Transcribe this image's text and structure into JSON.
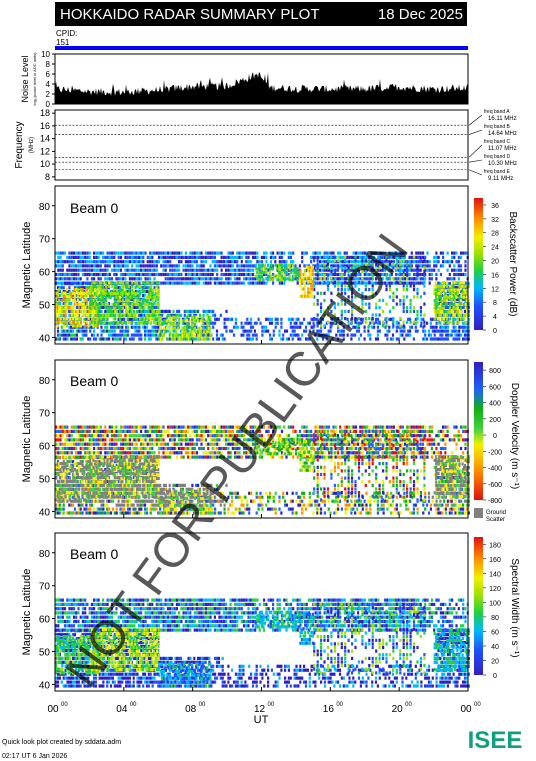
{
  "header": {
    "title": "HOKKAIDO RADAR SUMMARY PLOT",
    "date": "18 Dec 2025",
    "cpid_label": "CPID:",
    "cpid_value": "151",
    "bg_color": "#000000",
    "bar_color": "#0000ff"
  },
  "noise_panel": {
    "ylabel": "Noise Level",
    "sublabel": "log₁₀(noise level in ADC units)",
    "yticks": [
      "0",
      "2",
      "4",
      "6",
      "8",
      "10"
    ],
    "ylim": [
      0,
      10
    ]
  },
  "freq_panel": {
    "ylabel": "Frequency",
    "unit": "(MHz)",
    "yticks": [
      "8",
      "10",
      "12",
      "14",
      "16",
      "18"
    ],
    "ylim": [
      7.5,
      18.5
    ],
    "bands": [
      {
        "name": "freq band A",
        "value": "16.11 MHz",
        "mhz": 16.11
      },
      {
        "name": "freq band B",
        "value": "14.64 MHz",
        "mhz": 14.64
      },
      {
        "name": "freq band C",
        "value": "11.07 MHz",
        "mhz": 11.07
      },
      {
        "name": "freq band D",
        "value": "10.30 MHz",
        "mhz": 10.3
      },
      {
        "name": "freq band E",
        "value": "9.11 MHz",
        "mhz": 9.11
      }
    ]
  },
  "panels": [
    {
      "beam_label": "Beam  0",
      "ylabel": "Magnetic Latitude",
      "yticks": [
        "40",
        "50",
        "60",
        "70",
        "80"
      ],
      "colorbar_label": "Backscatter Power (dB)",
      "colorbar_ticks": [
        "0",
        "4",
        "8",
        "12",
        "16",
        "20",
        "24",
        "28",
        "32",
        "36"
      ]
    },
    {
      "beam_label": "Beam  0",
      "ylabel": "Magnetic Latitude",
      "yticks": [
        "40",
        "50",
        "60",
        "70",
        "80"
      ],
      "colorbar_label": "Doppler Velocity (m s⁻¹)",
      "colorbar_ticks": [
        "-800",
        "-600",
        "-400",
        "-200",
        "0",
        "200",
        "400",
        "600",
        "800"
      ],
      "ground_scatter_label": [
        "Ground",
        "Scatter"
      ]
    },
    {
      "beam_label": "Beam  0",
      "ylabel": "Magnetic Latitude",
      "yticks": [
        "40",
        "50",
        "60",
        "70",
        "80"
      ],
      "colorbar_label": "Spectral Width (m s⁻¹)",
      "colorbar_ticks": [
        "0",
        "20",
        "40",
        "60",
        "80",
        "100",
        "120",
        "140",
        "160",
        "180"
      ]
    }
  ],
  "xaxis": {
    "label": "UT",
    "ticks": [
      "00",
      "04",
      "08",
      "12",
      "16",
      "20",
      "00"
    ],
    "superscript": "00"
  },
  "watermark": "NOT FOR PUBLICATION",
  "footer": {
    "line1": "Quick look plot created by sddata.adm",
    "line2": "02:17 UT  6 Jan 2026",
    "logo_text": "ISEE"
  },
  "chart_data": {
    "type": "heatmap",
    "title": "HOKKAIDO RADAR SUMMARY PLOT",
    "date": "18 Dec 2025",
    "x_unit": "UT hours",
    "xlim": [
      0,
      24
    ],
    "noise_level": {
      "x": [
        0,
        2,
        4,
        6,
        8,
        10,
        11.8,
        12.5,
        14,
        16,
        18,
        20,
        22,
        24
      ],
      "values": [
        3.0,
        2.5,
        2.4,
        2.8,
        3.5,
        3.6,
        6.0,
        3.3,
        3.1,
        3.0,
        3.0,
        3.4,
        3.0,
        3.2
      ]
    },
    "frequency_mhz": [
      16.11,
      14.64,
      11.07,
      10.3,
      9.11
    ],
    "latitude_range": [
      38,
      86
    ],
    "scatter_regions": [
      {
        "ut": [
          0,
          2.5
        ],
        "mlat": [
          44,
          56
        ],
        "power_db": 20,
        "velocity": 0,
        "width": 60
      },
      {
        "ut": [
          2,
          6
        ],
        "mlat": [
          45,
          58
        ],
        "power_db": 14,
        "velocity": -100,
        "width": 80
      },
      {
        "ut": [
          6,
          9
        ],
        "mlat": [
          40,
          47
        ],
        "power_db": 16,
        "velocity": 0,
        "width": 30
      },
      {
        "ut": [
          11.6,
          14.2
        ],
        "mlat": [
          58,
          63
        ],
        "power_db": 12,
        "velocity": 200,
        "width": 40
      },
      {
        "ut": [
          14.2,
          15
        ],
        "mlat": [
          53,
          62
        ],
        "power_db": 22,
        "velocity": 150,
        "width": 30
      },
      {
        "ut": [
          22,
          24
        ],
        "mlat": [
          45,
          58
        ],
        "power_db": 16,
        "velocity": 0,
        "width": 40
      }
    ]
  }
}
